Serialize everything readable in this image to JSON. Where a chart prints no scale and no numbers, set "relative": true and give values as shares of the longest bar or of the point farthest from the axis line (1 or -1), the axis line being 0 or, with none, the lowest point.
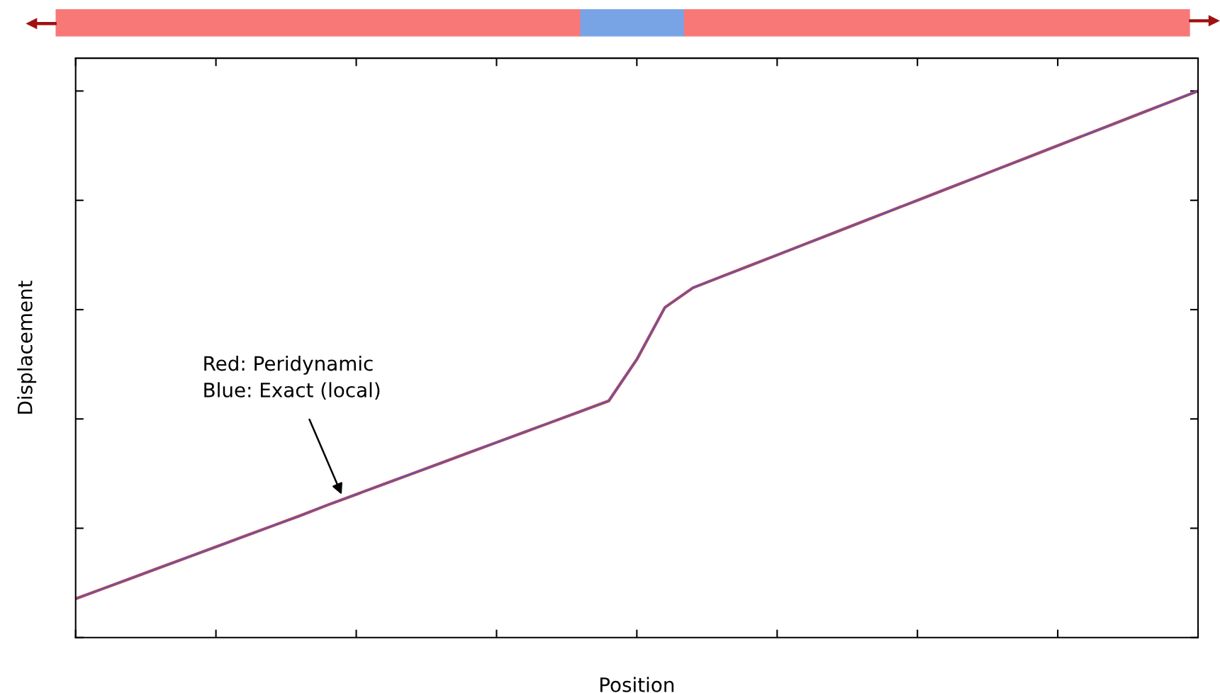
{
  "chart_data": {
    "type": "line",
    "relative": true,
    "xlabel": "Position",
    "ylabel": "Displacement",
    "categories": [
      null,
      null,
      null,
      null,
      null,
      null,
      null,
      null,
      null,
      null,
      null,
      null,
      null,
      null,
      null,
      null,
      null,
      null,
      null,
      null,
      null,
      null,
      null,
      null,
      null,
      null,
      null,
      null,
      null,
      null,
      null,
      null,
      null,
      null,
      null,
      null,
      null,
      null,
      null,
      null,
      null
    ],
    "series": [
      {
        "color": "#d0404a",
        "values": [
          0.071,
          0.09,
          0.109,
          0.128,
          0.147,
          0.166,
          0.185,
          0.204,
          0.223,
          0.243,
          0.262,
          0.281,
          0.3,
          0.319,
          0.338,
          0.357,
          0.376,
          0.395,
          0.414,
          0.433,
          0.509,
          0.604,
          0.64,
          0.66,
          0.68,
          0.7,
          0.72,
          0.74,
          0.76,
          0.78,
          0.8,
          0.82,
          0.84,
          0.86,
          0.88,
          0.9,
          0.92,
          0.94,
          0.96,
          0.98,
          1.0
        ]
      },
      {
        "color": "#4060c0",
        "values": [
          0.071,
          0.09,
          0.109,
          0.128,
          0.147,
          0.166,
          0.185,
          0.204,
          0.223,
          0.243,
          0.262,
          0.281,
          0.3,
          0.319,
          0.338,
          0.357,
          0.376,
          0.395,
          0.414,
          0.433,
          0.509,
          0.604,
          0.64,
          0.66,
          0.68,
          0.7,
          0.72,
          0.74,
          0.76,
          0.78,
          0.8,
          0.82,
          0.84,
          0.86,
          0.88,
          0.9,
          0.92,
          0.94,
          0.96,
          0.98,
          1.0
        ]
      }
    ],
    "annotations": [
      "Red: Peridynamic\nBlue: Exact (local)"
    ],
    "tick_labels": false,
    "grid": false,
    "legend": false
  }
}
